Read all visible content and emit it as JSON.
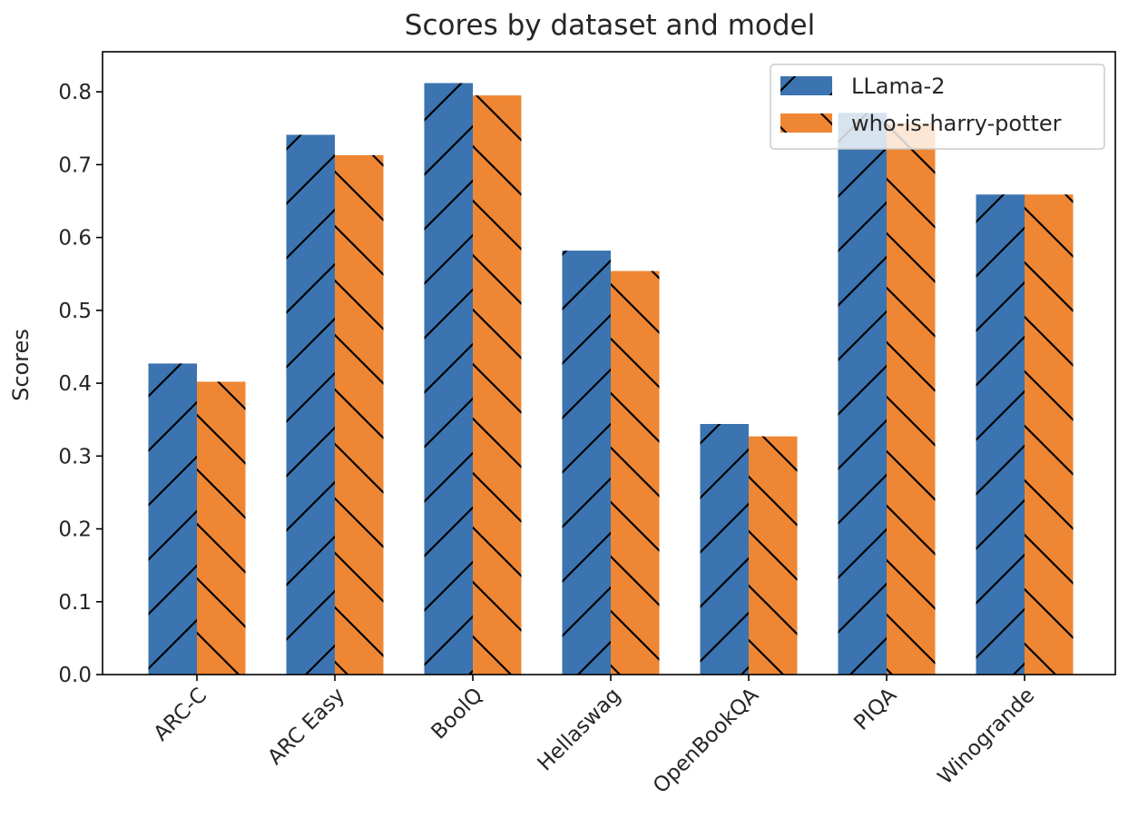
{
  "chart_data": {
    "type": "bar",
    "title": "Scores by dataset and model",
    "xlabel": "",
    "ylabel": "Scores",
    "ylim": [
      0,
      0.855
    ],
    "yticks": [
      "0.0",
      "0.1",
      "0.2",
      "0.3",
      "0.4",
      "0.5",
      "0.6",
      "0.7",
      "0.8"
    ],
    "categories": [
      "ARC-C",
      "ARC Easy",
      "BoolQ",
      "Hellaswag",
      "OpenBookQA",
      "PIQA",
      "Winogrande"
    ],
    "series": [
      {
        "name": "LLama-2",
        "color": "#3b74b0",
        "hatch": "forward-slash",
        "values": [
          0.427,
          0.741,
          0.812,
          0.582,
          0.344,
          0.771,
          0.659
        ]
      },
      {
        "name": "who-is-harry-potter",
        "color": "#ef8633",
        "hatch": "back-slash",
        "values": [
          0.402,
          0.713,
          0.795,
          0.554,
          0.327,
          0.757,
          0.659
        ]
      }
    ],
    "legend_position": "top-right",
    "grid": false
  }
}
